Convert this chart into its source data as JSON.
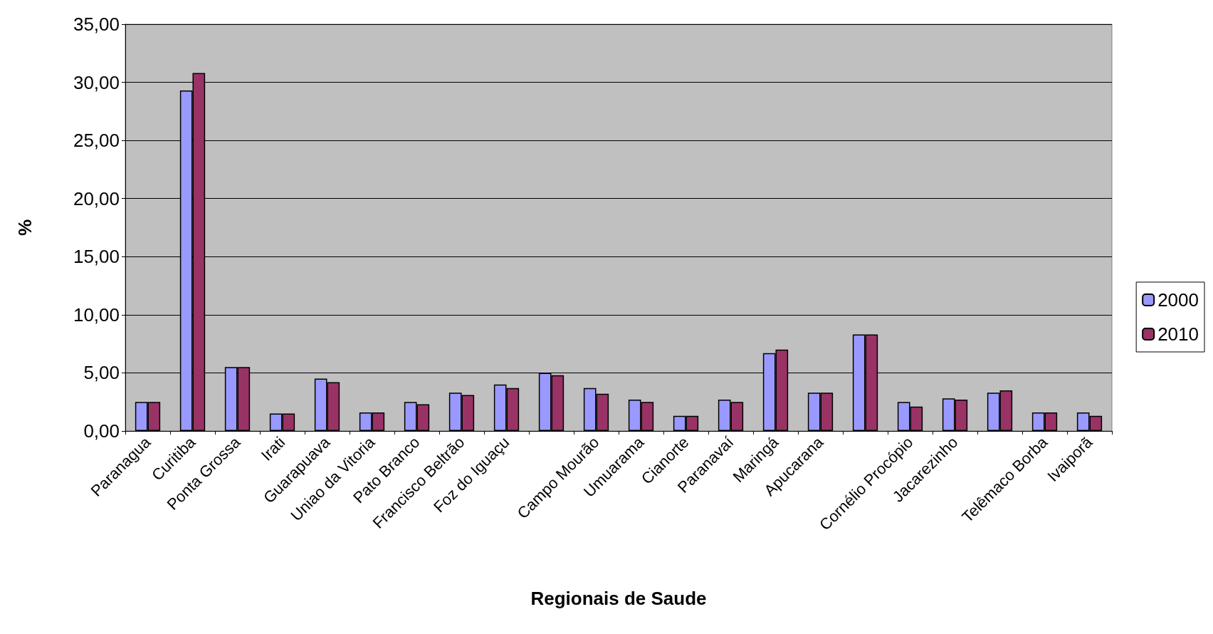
{
  "chart_data": {
    "type": "bar",
    "xlabel": "Regionais de Saude",
    "ylabel": "%",
    "categories": [
      "Paranagua",
      "Curitiba",
      "Ponta Grossa",
      "Irati",
      "Guarapuava",
      "Uniao da Vitoria",
      "Pato Branco",
      "Francisco Beltrão",
      "Foz do Iguaçu",
      null,
      "Campo Mourão",
      "Umuarama",
      "Cianorte",
      "Paranavaí",
      "Maringá",
      "Apucarana",
      null,
      "Cornélio Procópio",
      "Jacarezinho",
      null,
      "Telêmaco Borba",
      "Ivaiporã"
    ],
    "series": [
      {
        "name": "2000",
        "color": "#9999ff",
        "values": [
          2.5,
          29.3,
          5.5,
          1.5,
          4.5,
          1.6,
          2.5,
          3.3,
          4.0,
          5.0,
          3.7,
          2.7,
          1.3,
          2.7,
          6.7,
          3.3,
          8.3,
          2.5,
          2.8,
          3.3,
          1.6,
          1.6
        ]
      },
      {
        "name": "2010",
        "color": "#993366",
        "values": [
          2.5,
          30.8,
          5.5,
          1.5,
          4.2,
          1.6,
          2.3,
          3.1,
          3.7,
          4.8,
          3.2,
          2.5,
          1.3,
          2.5,
          7.0,
          3.3,
          8.3,
          2.1,
          2.7,
          3.5,
          1.6,
          1.3
        ]
      }
    ],
    "ylim": [
      0,
      35
    ],
    "yticks": [
      {
        "value": 0,
        "label": "0,00"
      },
      {
        "value": 5,
        "label": "5,00"
      },
      {
        "value": 10,
        "label": "10,00"
      },
      {
        "value": 15,
        "label": "15,00"
      },
      {
        "value": 20,
        "label": "20,00"
      },
      {
        "value": 25,
        "label": "25,00"
      },
      {
        "value": 30,
        "label": "30,00"
      },
      {
        "value": 35,
        "label": "35,00"
      }
    ],
    "grid": "y",
    "legend": "right"
  }
}
